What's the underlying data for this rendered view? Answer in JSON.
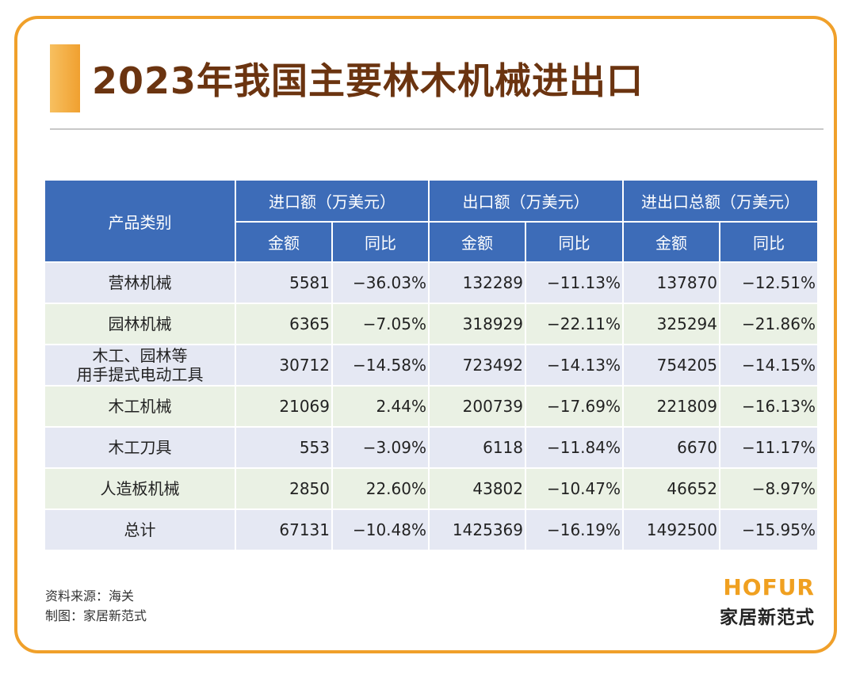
{
  "title": "2023年我国主要林木机械进出口",
  "chart_data": {
    "type": "table",
    "headers": {
      "category": "产品类别",
      "groups": [
        "进口额（万美元）",
        "出口额（万美元）",
        "进出口总额（万美元）"
      ],
      "sub": [
        "金额",
        "同比",
        "金额",
        "同比",
        "金额",
        "同比"
      ]
    },
    "rows": [
      {
        "category": "营林机械",
        "cells": [
          "5581",
          "−36.03%",
          "132289",
          "−11.13%",
          "137870",
          "−12.51%"
        ]
      },
      {
        "category": "园林机械",
        "cells": [
          "6365",
          "−7.05%",
          "318929",
          "−22.11%",
          "325294",
          "−21.86%"
        ]
      },
      {
        "category": "木工、园林等\n用手提式电动工具",
        "cells": [
          "30712",
          "−14.58%",
          "723492",
          "−14.13%",
          "754205",
          "−14.15%"
        ]
      },
      {
        "category": "木工机械",
        "cells": [
          "21069",
          "2.44%",
          "200739",
          "−17.69%",
          "221809",
          "−16.13%"
        ]
      },
      {
        "category": "木工刀具",
        "cells": [
          "553",
          "−3.09%",
          "6118",
          "−11.84%",
          "6670",
          "−11.17%"
        ]
      },
      {
        "category": "人造板机械",
        "cells": [
          "2850",
          "22.60%",
          "43802",
          "−10.47%",
          "46652",
          "−8.97%"
        ]
      },
      {
        "category": "总计",
        "cells": [
          "67131",
          "−10.48%",
          "1425369",
          "−16.19%",
          "1492500",
          "−15.95%"
        ]
      }
    ]
  },
  "footer": {
    "source": "资料来源：海关",
    "author": "制图：家居新范式",
    "brand_en": "HOFUR",
    "brand_cn": "家居新范式"
  },
  "colors": {
    "header": "#3d6cb8",
    "row_odd": "#e5e8f3",
    "row_even": "#eaf1e4",
    "frame": "#f0a02a",
    "title": "#6b3410"
  }
}
